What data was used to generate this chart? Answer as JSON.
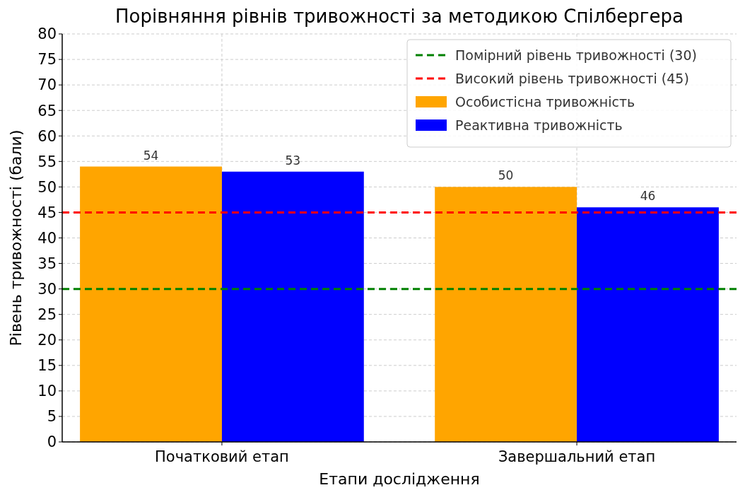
{
  "chart_data": {
    "type": "bar",
    "title": "Порівняння рівнів тривожності за методикою Спілбергера",
    "xlabel": "Етапи дослідження",
    "ylabel": "Рівень тривожності (бали)",
    "categories": [
      "Початковий етап",
      "Завершальний етап"
    ],
    "series": [
      {
        "name": "Особистісна тривожність",
        "color": "#ffa500",
        "values": [
          54,
          50
        ]
      },
      {
        "name": "Реактивна тривожність",
        "color": "#0000ff",
        "values": [
          53,
          46
        ]
      }
    ],
    "ylim": [
      0,
      80
    ],
    "yticks": [
      0,
      5,
      10,
      15,
      20,
      25,
      30,
      35,
      40,
      45,
      50,
      55,
      60,
      65,
      70,
      75,
      80
    ],
    "grid": true,
    "legend": "top right",
    "data_labels": true,
    "ref_lines": [
      {
        "axis": "y",
        "value": 30,
        "label": "Помірний рівень тривожності (30)",
        "color": "#008000",
        "line_style": "dashed"
      },
      {
        "axis": "y",
        "value": 45,
        "label": "Високий рівень тривожності (45)",
        "color": "#ff0000",
        "line_style": "dashed"
      }
    ]
  }
}
